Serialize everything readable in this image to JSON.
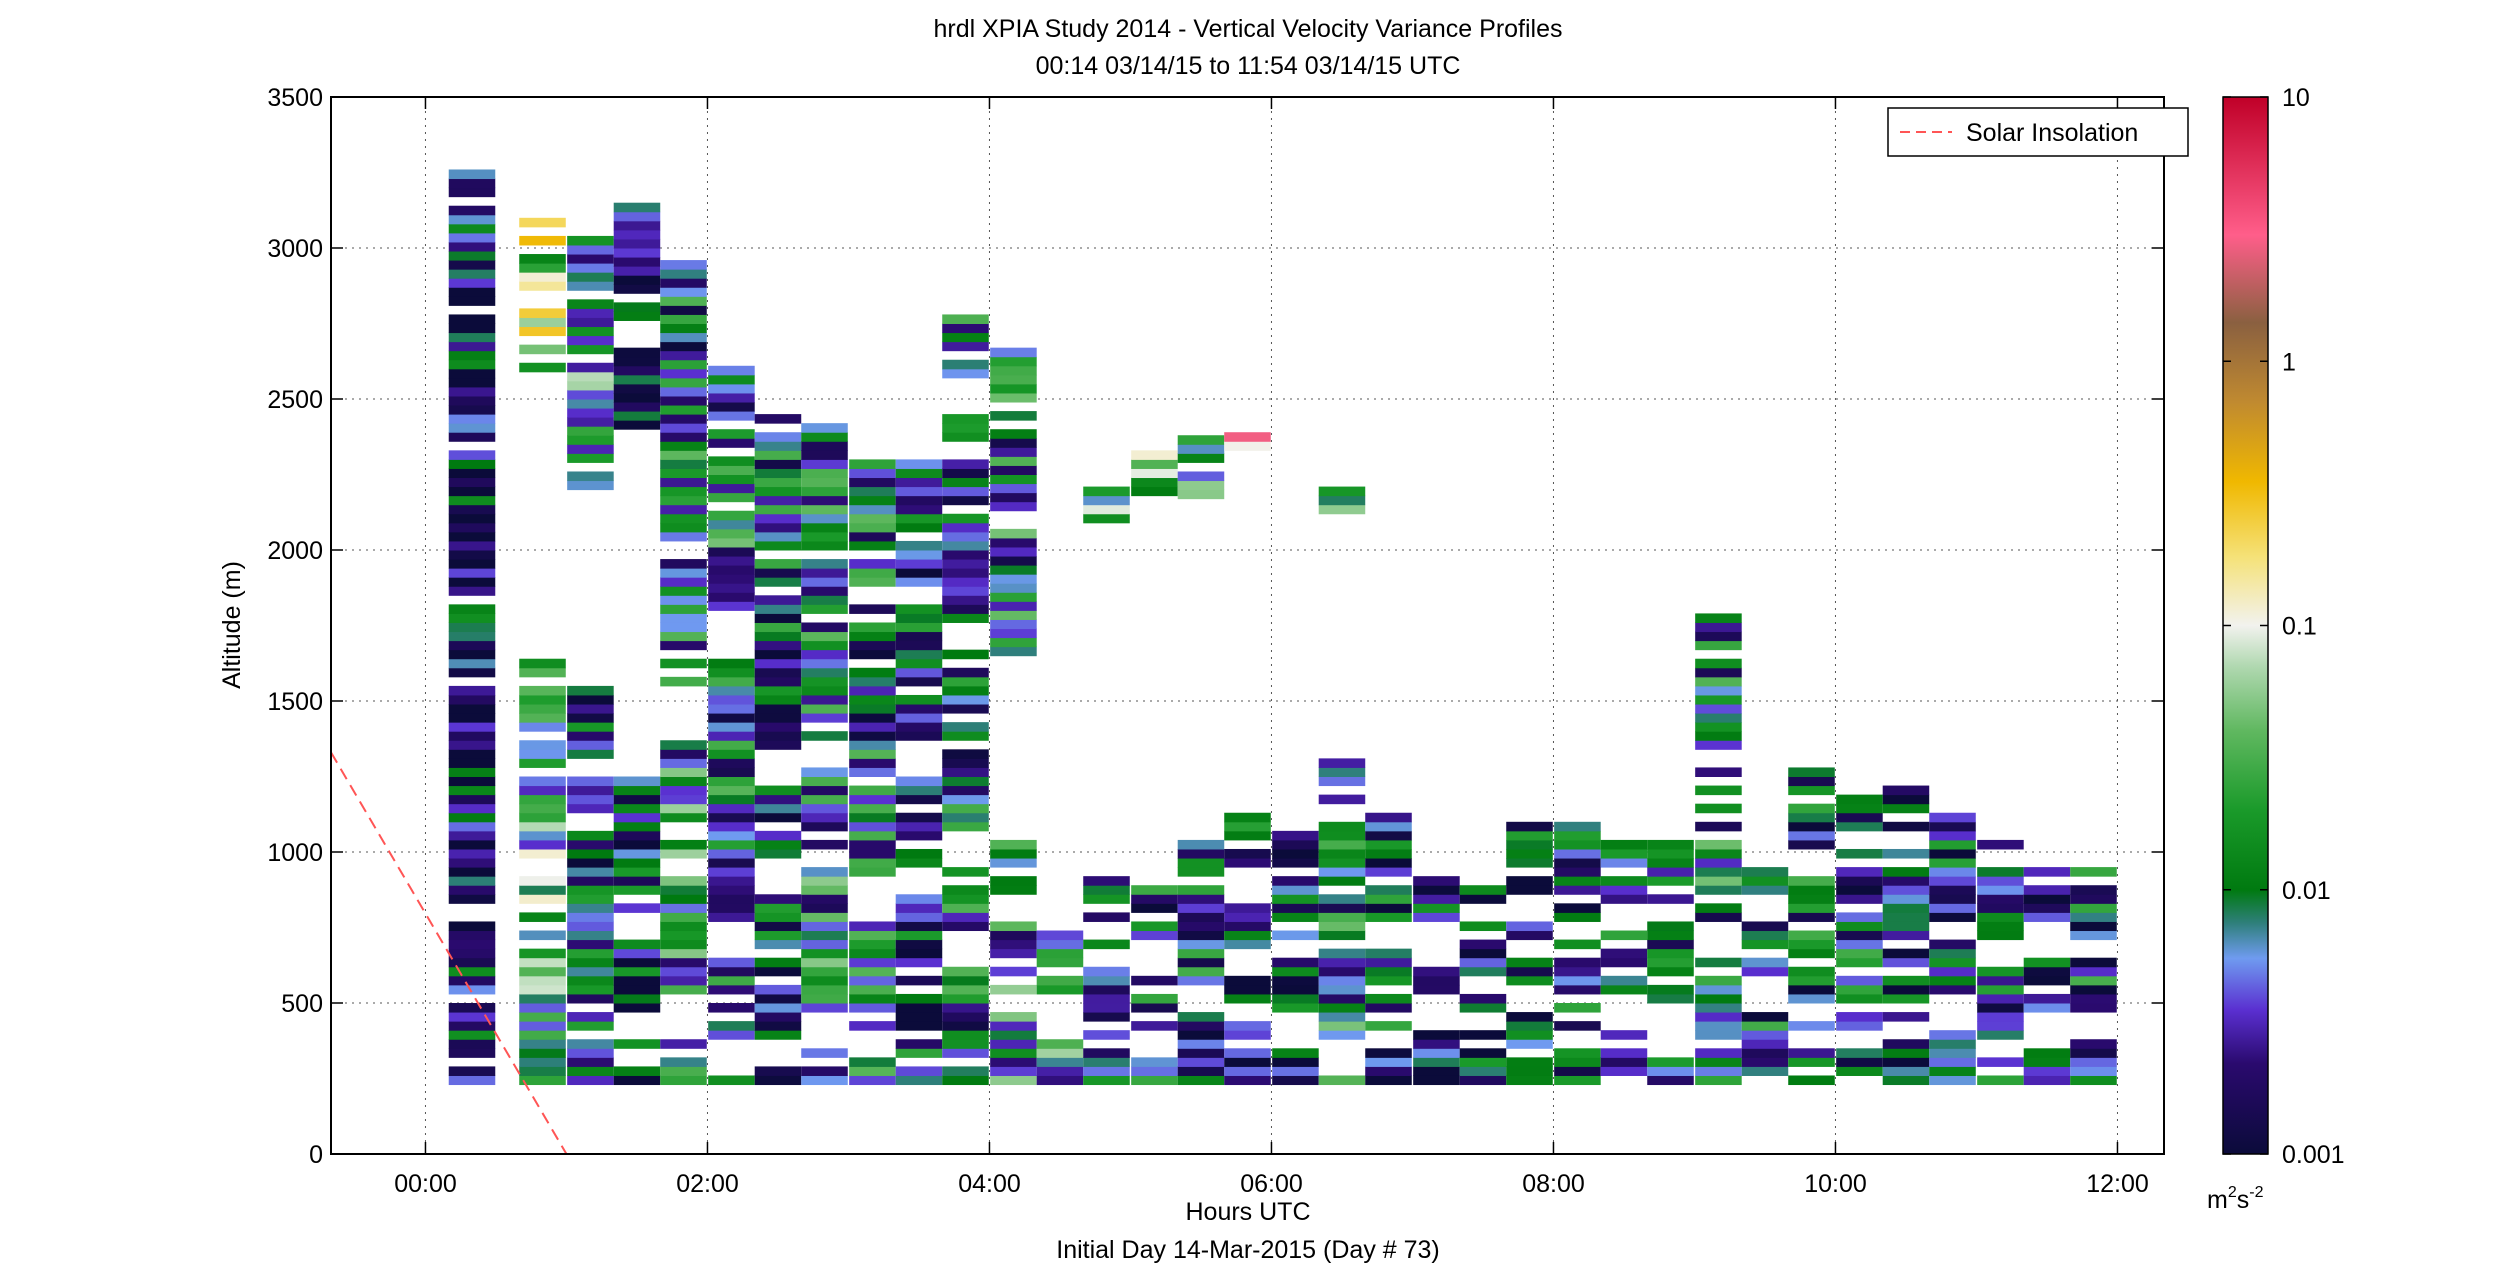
{
  "chart_data": {
    "type": "heatmap",
    "title": "hrdl XPIA Study 2014 - Vertical Velocity Variance Profiles",
    "subtitle": "00:14 03/14/15 to 11:54 03/14/15  UTC",
    "xlabel": "Hours UTC",
    "xlabel2": "Initial Day 14-Mar-2015 (Day # 73)",
    "ylabel": "Altitude (m)",
    "xlim_hours": [
      -0.67,
      12.33
    ],
    "ylim": [
      0,
      3500
    ],
    "x_ticks": [
      {
        "value": 0,
        "label": "00:00"
      },
      {
        "value": 2,
        "label": "02:00"
      },
      {
        "value": 4,
        "label": "04:00"
      },
      {
        "value": 6,
        "label": "06:00"
      },
      {
        "value": 8,
        "label": "08:00"
      },
      {
        "value": 10,
        "label": "10:00"
      },
      {
        "value": 12,
        "label": "12:00"
      }
    ],
    "y_ticks": [
      {
        "value": 0,
        "label": "0"
      },
      {
        "value": 500,
        "label": "500"
      },
      {
        "value": 1000,
        "label": "1000"
      },
      {
        "value": 1500,
        "label": "1500"
      },
      {
        "value": 2000,
        "label": "2000"
      },
      {
        "value": 2500,
        "label": "2500"
      },
      {
        "value": 3000,
        "label": "3000"
      },
      {
        "value": 3500,
        "label": "3500"
      }
    ],
    "grid": true,
    "legend": {
      "position": "top-right",
      "entries": [
        {
          "label": "Solar Insolation",
          "color": "#ff5555",
          "style": "dashed"
        }
      ]
    },
    "colorbar": {
      "scale": "log",
      "range": [
        0.001,
        10
      ],
      "ticks": [
        {
          "value": 10,
          "label": "10"
        },
        {
          "value": 1,
          "label": "1"
        },
        {
          "value": 0.1,
          "label": "0.1"
        },
        {
          "value": 0.01,
          "label": "0.01"
        },
        {
          "value": 0.001,
          "label": "0.001"
        }
      ],
      "unit_base": "m",
      "unit_sup1": "2",
      "unit_mid": "s",
      "unit_sup2": "-2",
      "stops": [
        {
          "value": 0.001,
          "color": "#0b0b3a"
        },
        {
          "value": 0.0022,
          "color": "#2a0a6e"
        },
        {
          "value": 0.0035,
          "color": "#5a2fd0"
        },
        {
          "value": 0.0055,
          "color": "#6f9bf0"
        },
        {
          "value": 0.0075,
          "color": "#2e7f7a"
        },
        {
          "value": 0.01,
          "color": "#007a10"
        },
        {
          "value": 0.02,
          "color": "#1a9a2a"
        },
        {
          "value": 0.04,
          "color": "#60b860"
        },
        {
          "value": 0.07,
          "color": "#b0d8b0"
        },
        {
          "value": 0.1,
          "color": "#f2f2ee"
        },
        {
          "value": 0.18,
          "color": "#f5e27a"
        },
        {
          "value": 0.35,
          "color": "#f0b800"
        },
        {
          "value": 0.7,
          "color": "#c08a30"
        },
        {
          "value": 1.4,
          "color": "#8a6040"
        },
        {
          "value": 3,
          "color": "#ff5e8a"
        },
        {
          "value": 10,
          "color": "#c00028"
        }
      ]
    },
    "solar_insolation_line": {
      "x_hours": [
        -0.67,
        1.0
      ],
      "y": [
        1330,
        0
      ]
    },
    "profiles": [
      {
        "t": 0.33,
        "alt_min": 230,
        "alt_max": 3260,
        "gaps": [],
        "bias": -2.6
      },
      {
        "t": 0.83,
        "alt_min": 230,
        "alt_max": 1640,
        "gaps": [],
        "bias": -1.7
      },
      {
        "t": 0.83,
        "alt_min": 2590,
        "alt_max": 3080,
        "gaps": [
          2800
        ],
        "bias": -1.2
      },
      {
        "t": 1.17,
        "alt_min": 230,
        "alt_max": 1550,
        "gaps": [
          1100,
          1300
        ],
        "bias": -2.3
      },
      {
        "t": 1.17,
        "alt_min": 2200,
        "alt_max": 3050,
        "gaps": [],
        "bias": -1.9
      },
      {
        "t": 1.5,
        "alt_min": 230,
        "alt_max": 1240,
        "gaps": [
          420,
          800
        ],
        "bias": -2.4
      },
      {
        "t": 1.5,
        "alt_min": 2400,
        "alt_max": 3140,
        "gaps": [
          2700
        ],
        "bias": -2.5
      },
      {
        "t": 1.83,
        "alt_min": 230,
        "alt_max": 1350,
        "gaps": [
          400,
          900
        ],
        "bias": -2.0
      },
      {
        "t": 1.83,
        "alt_min": 1550,
        "alt_max": 2960,
        "gaps": [
          2000
        ],
        "bias": -2.2
      },
      {
        "t": 2.17,
        "alt_min": 230,
        "alt_max": 1630,
        "gaps": [
          300,
          700
        ],
        "bias": -2.2
      },
      {
        "t": 2.17,
        "alt_min": 1800,
        "alt_max": 2600,
        "gaps": [],
        "bias": -2.1
      },
      {
        "t": 2.5,
        "alt_min": 230,
        "alt_max": 2450,
        "gaps": [
          300,
          900,
          1250
        ],
        "bias": -2.3
      },
      {
        "t": 2.83,
        "alt_min": 230,
        "alt_max": 2420,
        "gaps": [
          400,
          1000
        ],
        "bias": -2.0
      },
      {
        "t": 3.17,
        "alt_min": 230,
        "alt_max": 2300,
        "gaps": [
          350,
          800,
          1800
        ],
        "bias": -2.2
      },
      {
        "t": 3.5,
        "alt_min": 230,
        "alt_max": 2300,
        "gaps": [
          900,
          1300,
          1850
        ],
        "bias": -2.4
      },
      {
        "t": 3.83,
        "alt_min": 230,
        "alt_max": 2760,
        "gaps": [
          700,
          1000,
          1700,
          2500
        ],
        "bias": -2.2
      },
      {
        "t": 4.17,
        "alt_min": 230,
        "alt_max": 1020,
        "gaps": [
          500,
          800
        ],
        "bias": -2.0
      },
      {
        "t": 4.17,
        "alt_min": 1650,
        "alt_max": 2650,
        "gaps": [
          2100
        ],
        "bias": -2.1
      },
      {
        "t": 4.5,
        "alt_min": 230,
        "alt_max": 740,
        "gaps": [
          450
        ],
        "bias": -2.0
      },
      {
        "t": 4.83,
        "alt_min": 230,
        "alt_max": 900,
        "gaps": [
          400,
          700
        ],
        "bias": -2.3
      },
      {
        "t": 4.83,
        "alt_min": 2090,
        "alt_max": 2200,
        "gaps": [],
        "bias": -1.8
      },
      {
        "t": 5.17,
        "alt_min": 230,
        "alt_max": 880,
        "gaps": [
          350,
          600
        ],
        "bias": -2.3
      },
      {
        "t": 5.17,
        "alt_min": 2180,
        "alt_max": 2320,
        "gaps": [],
        "bias": -1.6
      },
      {
        "t": 5.5,
        "alt_min": 230,
        "alt_max": 1020,
        "gaps": [
          500,
          800
        ],
        "bias": -2.3
      },
      {
        "t": 5.5,
        "alt_min": 2170,
        "alt_max": 2380,
        "gaps": [],
        "bias": -1.9
      },
      {
        "t": 5.83,
        "alt_min": 230,
        "alt_max": 1120,
        "gaps": [
          600,
          850
        ],
        "bias": -2.4
      },
      {
        "t": 5.83,
        "alt_min": 2330,
        "alt_max": 2380,
        "gaps": [],
        "bias": -0.2
      },
      {
        "t": 6.17,
        "alt_min": 230,
        "alt_max": 1060,
        "gaps": [
          400,
          700
        ],
        "bias": -2.4
      },
      {
        "t": 6.5,
        "alt_min": 230,
        "alt_max": 1300,
        "gaps": [
          300,
          1150
        ],
        "bias": -2.1
      },
      {
        "t": 6.5,
        "alt_min": 2120,
        "alt_max": 2200,
        "gaps": [],
        "bias": -1.5
      },
      {
        "t": 6.83,
        "alt_min": 230,
        "alt_max": 1120,
        "gaps": [
          400,
          700
        ],
        "bias": -2.3
      },
      {
        "t": 7.17,
        "alt_min": 230,
        "alt_max": 900,
        "gaps": [
          450,
          650
        ],
        "bias": -2.5
      },
      {
        "t": 7.5,
        "alt_min": 230,
        "alt_max": 880,
        "gaps": [
          400,
          750
        ],
        "bias": -2.4
      },
      {
        "t": 7.83,
        "alt_min": 230,
        "alt_max": 1100,
        "gaps": [
          500,
          800
        ],
        "bias": -2.4
      },
      {
        "t": 8.17,
        "alt_min": 230,
        "alt_max": 1100,
        "gaps": [
          350,
          700
        ],
        "bias": -2.4
      },
      {
        "t": 8.5,
        "alt_min": 230,
        "alt_max": 1040,
        "gaps": [
          450,
          750
        ],
        "bias": -2.3
      },
      {
        "t": 8.83,
        "alt_min": 230,
        "alt_max": 1040,
        "gaps": [
          400,
          800
        ],
        "bias": -2.3
      },
      {
        "t": 9.17,
        "alt_min": 230,
        "alt_max": 1780,
        "gaps": [
          350,
          700,
          1000,
          1250
        ],
        "bias": -2.1
      },
      {
        "t": 9.5,
        "alt_min": 230,
        "alt_max": 940,
        "gaps": [
          500,
          800
        ],
        "bias": -2.3
      },
      {
        "t": 9.83,
        "alt_min": 230,
        "alt_max": 1270,
        "gaps": [
          400,
          950
        ],
        "bias": -2.3
      },
      {
        "t": 10.17,
        "alt_min": 230,
        "alt_max": 1200,
        "gaps": [
          350,
          1000
        ],
        "bias": -2.3
      },
      {
        "t": 10.5,
        "alt_min": 230,
        "alt_max": 1220,
        "gaps": [
          500,
          1050
        ],
        "bias": -2.4
      },
      {
        "t": 10.83,
        "alt_min": 230,
        "alt_max": 1180,
        "gaps": [
          450,
          700
        ],
        "bias": -2.4
      },
      {
        "t": 11.17,
        "alt_min": 230,
        "alt_max": 1100,
        "gaps": [
          300,
          650
        ],
        "bias": -2.4
      },
      {
        "t": 11.5,
        "alt_min": 230,
        "alt_max": 950,
        "gaps": [
          400,
          700
        ],
        "bias": -2.4
      },
      {
        "t": 11.83,
        "alt_min": 230,
        "alt_max": 950,
        "gaps": [
          400,
          650
        ],
        "bias": -2.3
      }
    ]
  }
}
